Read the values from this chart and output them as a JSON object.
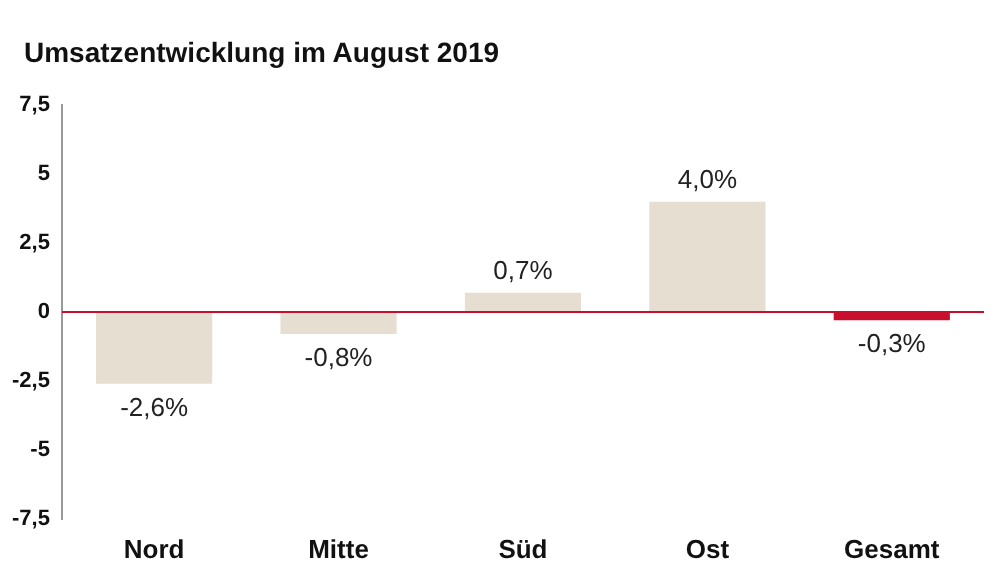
{
  "chart_data": {
    "type": "bar",
    "title": "Umsatzentwicklung im August 2019",
    "categories": [
      "Nord",
      "Mitte",
      "Süd",
      "Ost",
      "Gesamt"
    ],
    "values": [
      -2.6,
      -0.8,
      0.7,
      4.0,
      -0.3
    ],
    "colors": [
      "#e6dfd1",
      "#e6dfd1",
      "#e6dfd1",
      "#e6dfd1",
      "#c8102e"
    ],
    "value_labels": [
      "-2,6%",
      "-0,8%",
      "0,7%",
      "4,0%",
      "-0,3%"
    ],
    "ylim": [
      -7.5,
      7.5
    ],
    "yticks": [
      {
        "value": 7.5,
        "label": "7,5"
      },
      {
        "value": 5,
        "label": "5"
      },
      {
        "value": 2.5,
        "label": "2,5"
      },
      {
        "value": 0,
        "label": "0"
      },
      {
        "value": -2.5,
        "label": "-2,5"
      },
      {
        "value": -5,
        "label": "-5"
      },
      {
        "value": -7.5,
        "label": "-7,5"
      }
    ],
    "ref_lines": [
      {
        "axis": "y",
        "value": 0,
        "color": "#c8102e"
      }
    ],
    "grid": false,
    "legend": false
  }
}
